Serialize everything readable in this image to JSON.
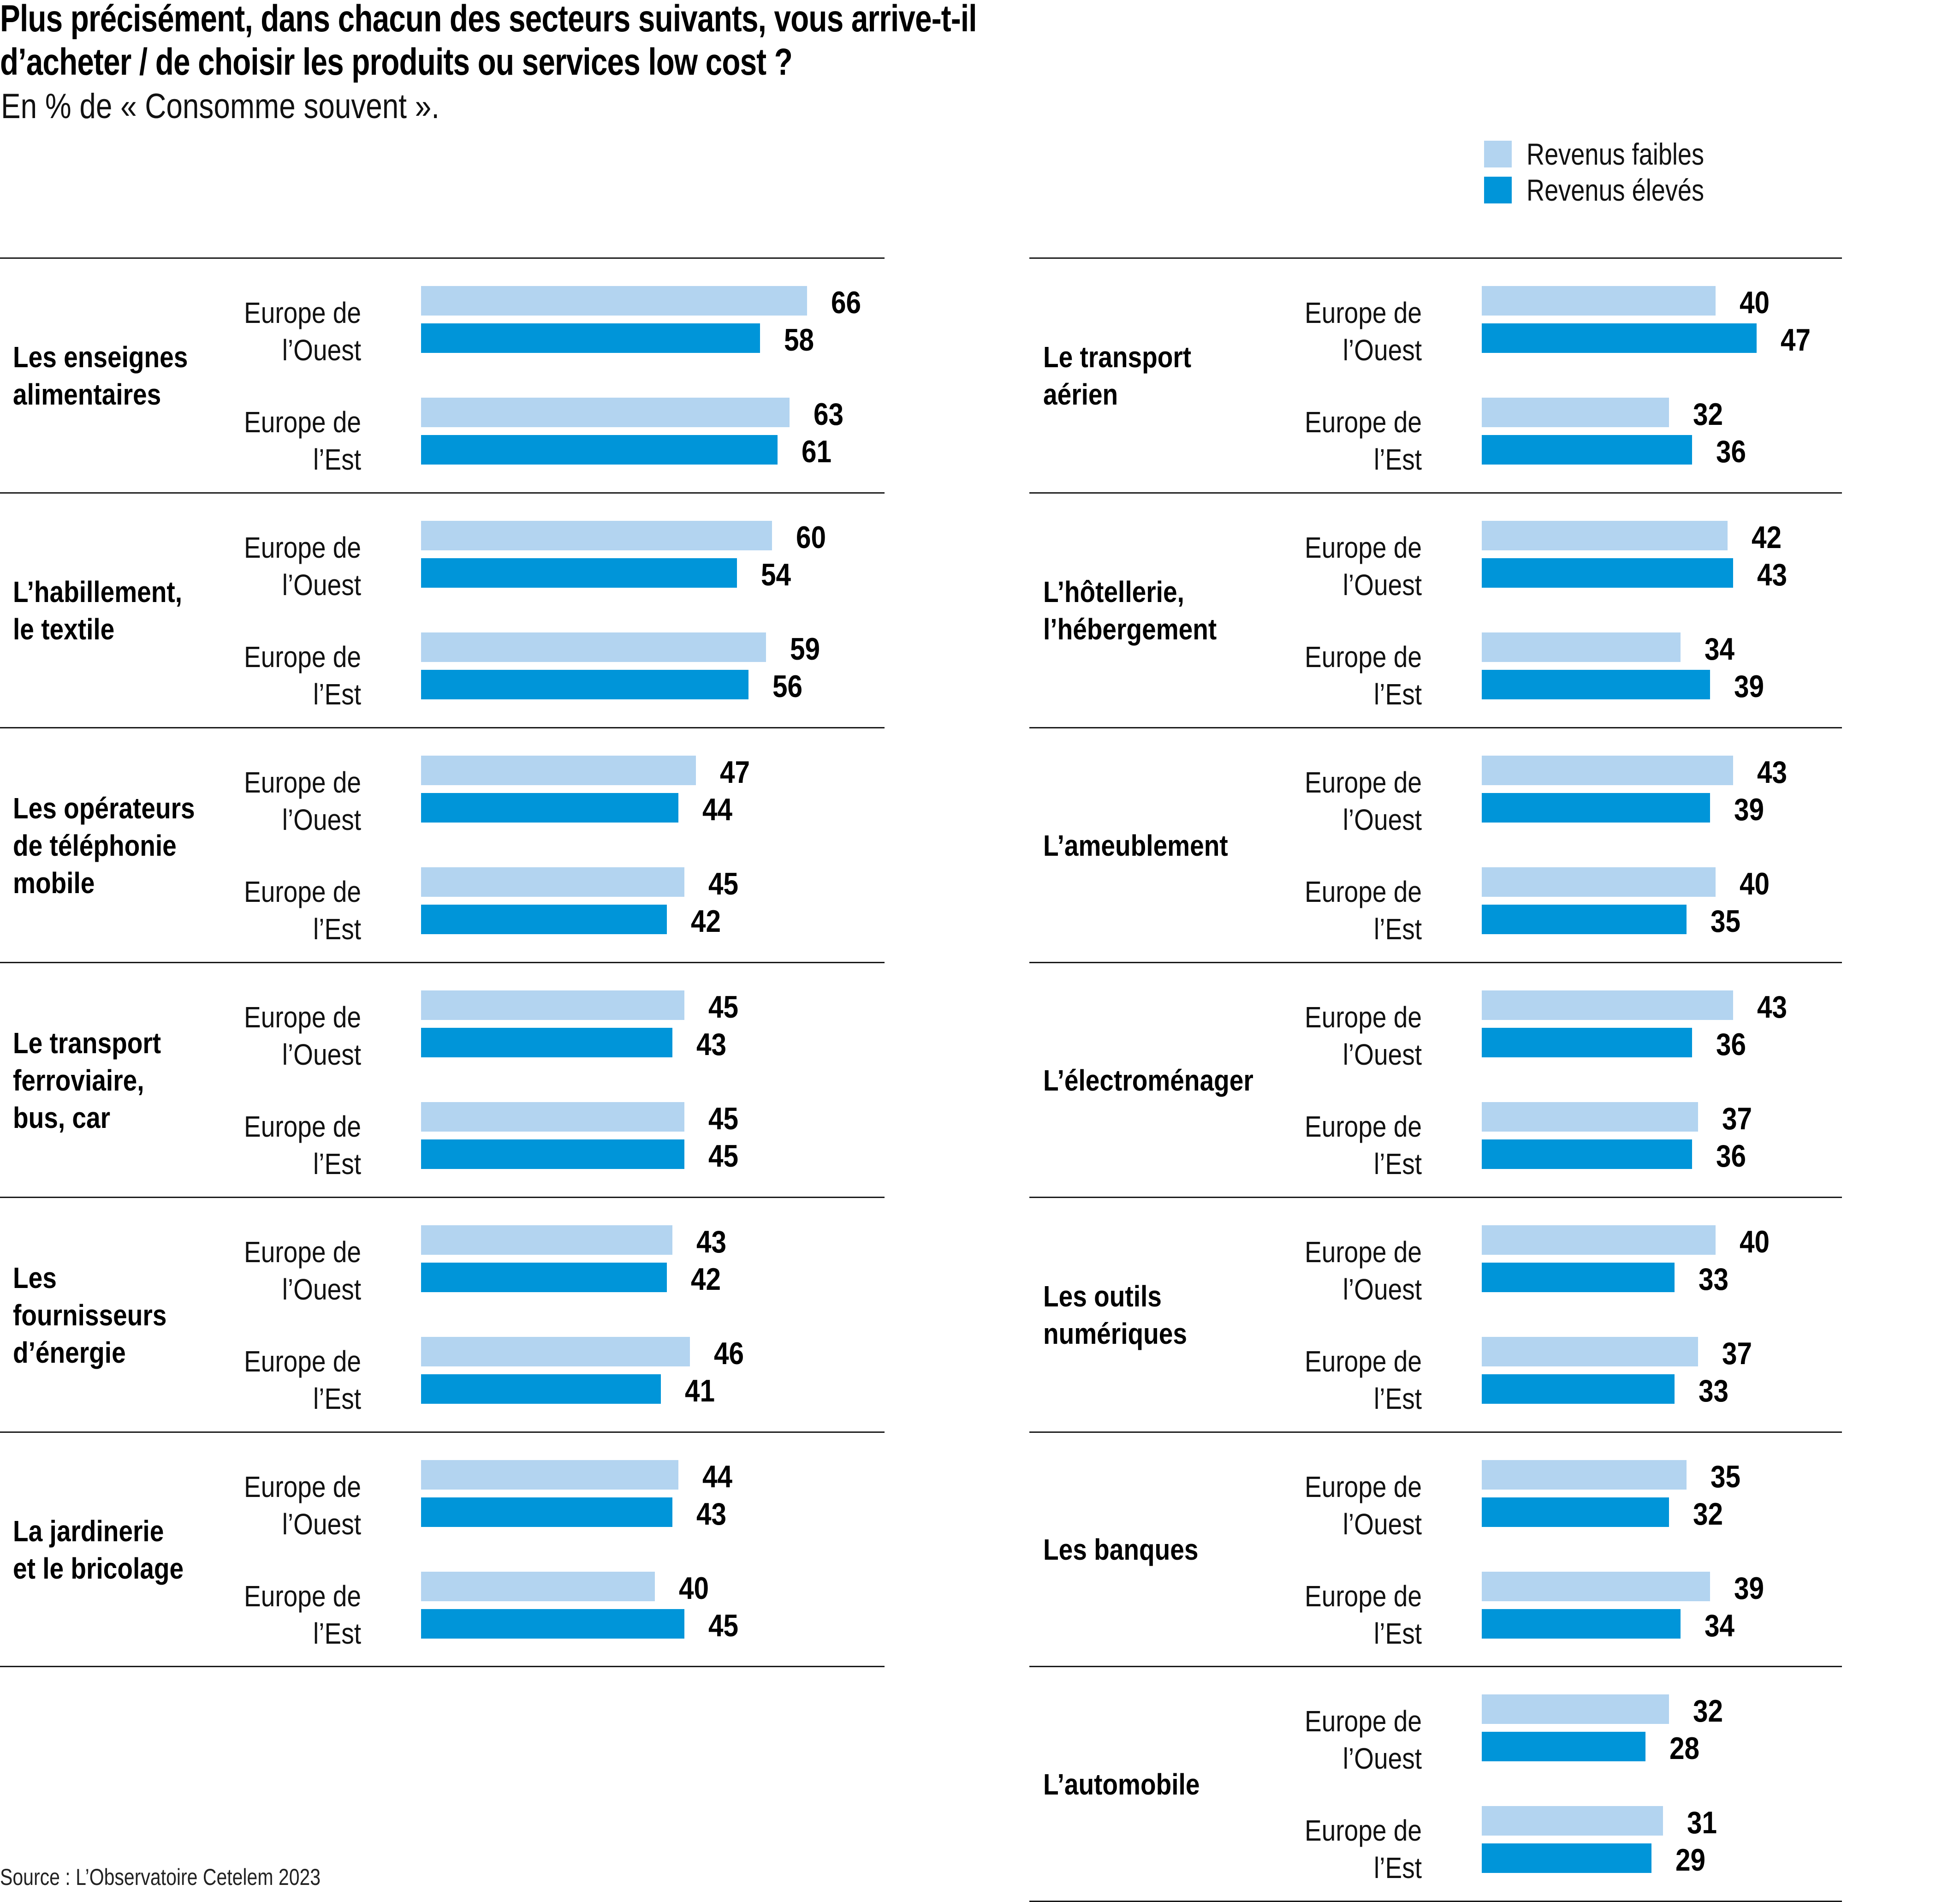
{
  "title_line1": "Plus précisément, dans chacun des secteurs suivants, vous arrive-t-il",
  "title_line2": "d’acheter / de choisir les produits ou services low cost ?",
  "subtitle": "En % de « Consomme souvent ».",
  "source": "Source : L’Observatoire Cetelem 2023",
  "legend": [
    {
      "label": "Revenus faibles",
      "color": "#b3d4f0"
    },
    {
      "label": "Revenus élevés",
      "color": "#0095d9"
    }
  ],
  "region_labels": {
    "ouest": "Europe de\nl’Ouest",
    "est": "Europe de\nl’Est"
  },
  "chart_data": {
    "type": "bar",
    "orientation": "horizontal",
    "title": "Plus précisément, dans chacun des secteurs suivants, vous arrive-t-il d’acheter / de choisir les produits ou services low cost ?",
    "subtitle": "En % de « Consomme souvent ».",
    "unit": "%",
    "series_names": [
      "Revenus faibles",
      "Revenus élevés"
    ],
    "regions": [
      "Europe de l’Ouest",
      "Europe de l’Est"
    ],
    "xlim": [
      0,
      70
    ],
    "grid": false,
    "legend_position": "top-right",
    "columns": [
      {
        "sectors": [
          {
            "name": "Les enseignes\nalimentaires",
            "ouest": {
              "faibles": 66,
              "eleves": 58
            },
            "est": {
              "faibles": 63,
              "eleves": 61
            }
          },
          {
            "name": "L’habillement,\nle textile",
            "ouest": {
              "faibles": 60,
              "eleves": 54
            },
            "est": {
              "faibles": 59,
              "eleves": 56
            }
          },
          {
            "name": "Les opérateurs\nde téléphonie\nmobile",
            "ouest": {
              "faibles": 47,
              "eleves": 44
            },
            "est": {
              "faibles": 45,
              "eleves": 42
            }
          },
          {
            "name": "Le transport\nferroviaire,\nbus, car",
            "ouest": {
              "faibles": 45,
              "eleves": 43
            },
            "est": {
              "faibles": 45,
              "eleves": 45
            }
          },
          {
            "name": "Les\nfournisseurs\nd’énergie",
            "ouest": {
              "faibles": 43,
              "eleves": 42
            },
            "est": {
              "faibles": 46,
              "eleves": 41
            }
          },
          {
            "name": "La jardinerie\net le bricolage",
            "ouest": {
              "faibles": 44,
              "eleves": 43
            },
            "est": {
              "faibles": 40,
              "eleves": 45
            }
          }
        ]
      },
      {
        "sectors": [
          {
            "name": "Le transport\naérien",
            "ouest": {
              "faibles": 40,
              "eleves": 47
            },
            "est": {
              "faibles": 32,
              "eleves": 36
            }
          },
          {
            "name": "L’hôtellerie,\nl’hébergement",
            "ouest": {
              "faibles": 42,
              "eleves": 43
            },
            "est": {
              "faibles": 34,
              "eleves": 39
            }
          },
          {
            "name": "L’ameublement",
            "ouest": {
              "faibles": 43,
              "eleves": 39
            },
            "est": {
              "faibles": 40,
              "eleves": 35
            }
          },
          {
            "name": "L’électroménager",
            "ouest": {
              "faibles": 43,
              "eleves": 36
            },
            "est": {
              "faibles": 37,
              "eleves": 36
            }
          },
          {
            "name": "Les outils\nnumériques",
            "ouest": {
              "faibles": 40,
              "eleves": 33
            },
            "est": {
              "faibles": 37,
              "eleves": 33
            }
          },
          {
            "name": "Les banques",
            "ouest": {
              "faibles": 35,
              "eleves": 32
            },
            "est": {
              "faibles": 39,
              "eleves": 34
            }
          },
          {
            "name": "L’automobile",
            "ouest": {
              "faibles": 32,
              "eleves": 28
            },
            "est": {
              "faibles": 31,
              "eleves": 29
            }
          }
        ]
      }
    ]
  }
}
